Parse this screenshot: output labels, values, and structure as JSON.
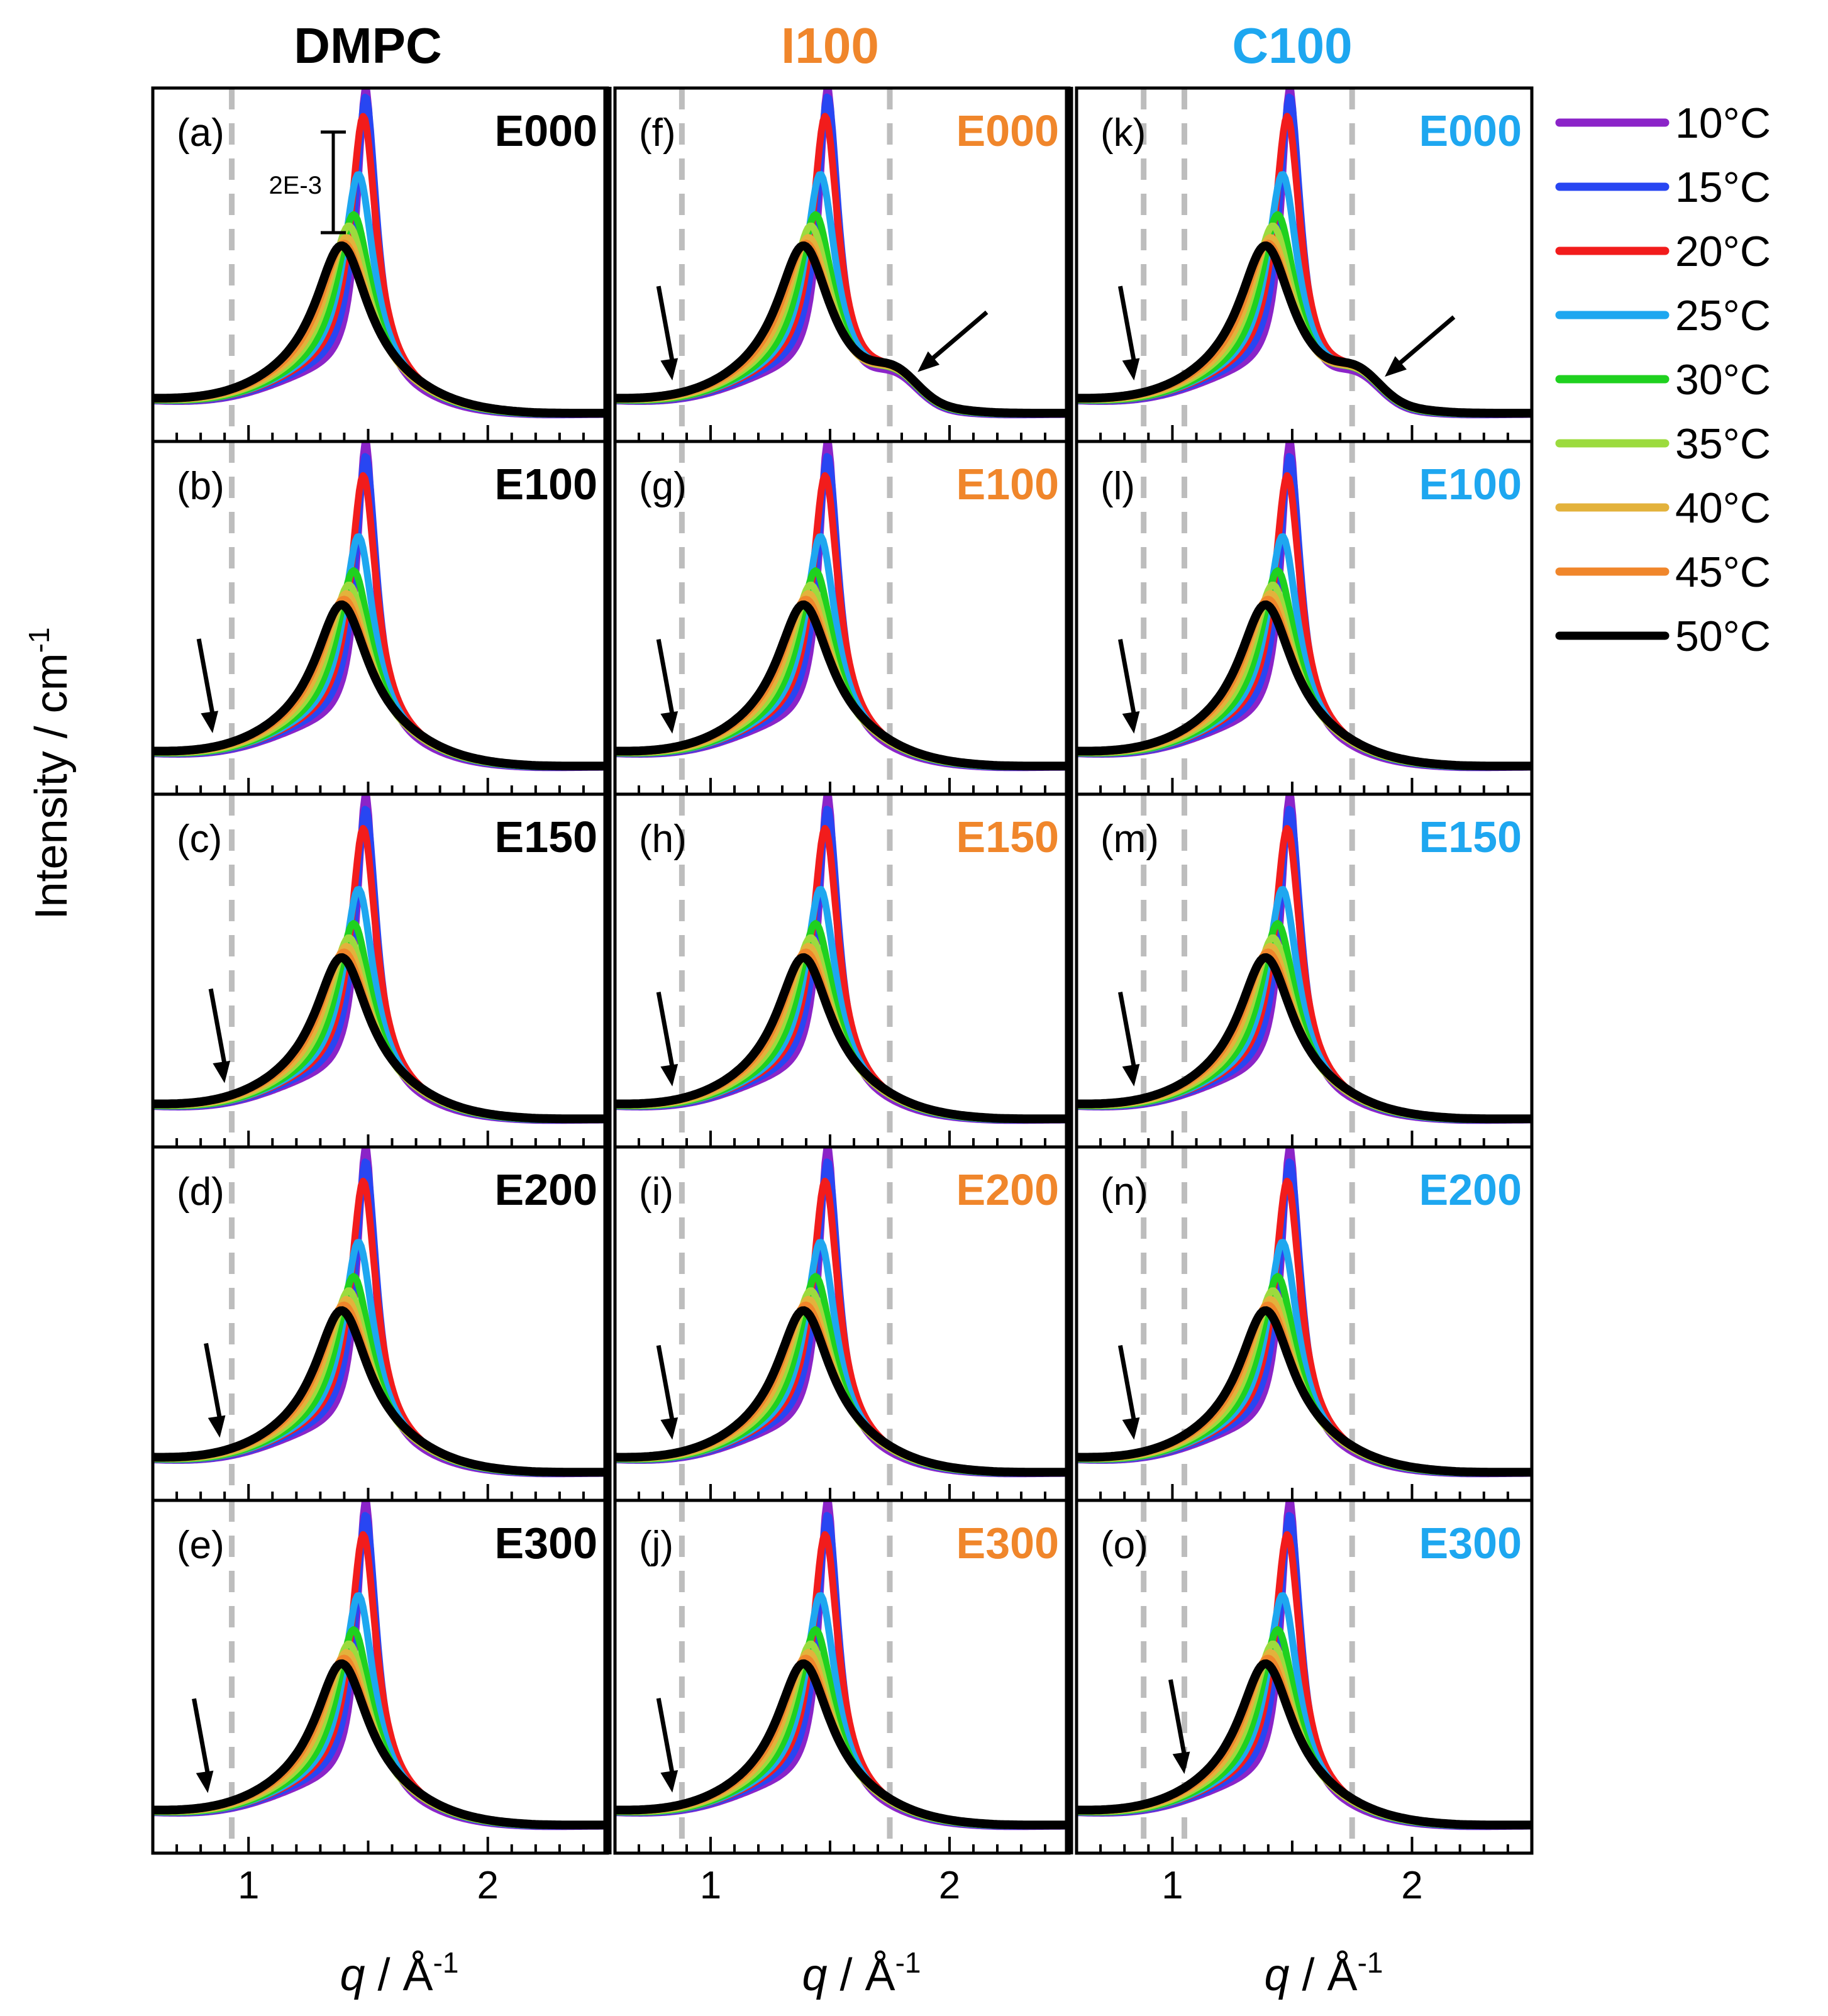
{
  "y_axis_label": {
    "main": "Intensity / cm",
    "sup": "-1"
  },
  "x_axis_label": {
    "symbol": "q",
    "unit": " / Å",
    "sup": "-1"
  },
  "scale_bar_label": "2E-3",
  "columns": [
    {
      "title": "DMPC",
      "color": "#000000",
      "label_color": "#000000"
    },
    {
      "title": "I100",
      "color": "#F0862B",
      "label_color": "#F0862B"
    },
    {
      "title": "C100",
      "color": "#1EA7F0",
      "label_color": "#1EA7F0"
    }
  ],
  "rows": [
    "E000",
    "E100",
    "E150",
    "E200",
    "E300"
  ],
  "panel_letters": [
    [
      "(a)",
      "(b)",
      "(c)",
      "(d)",
      "(e)"
    ],
    [
      "(f)",
      "(g)",
      "(h)",
      "(i)",
      "(j)"
    ],
    [
      "(k)",
      "(l)",
      "(m)",
      "(n)",
      "(o)"
    ]
  ],
  "legend": [
    {
      "label": "10°C",
      "color": "#8B24C8"
    },
    {
      "label": "15°C",
      "color": "#2846F2"
    },
    {
      "label": "20°C",
      "color": "#F21C1C"
    },
    {
      "label": "25°C",
      "color": "#1EA7F0"
    },
    {
      "label": "30°C",
      "color": "#1FD11F"
    },
    {
      "label": "35°C",
      "color": "#9CDB3E"
    },
    {
      "label": "40°C",
      "color": "#E3B23C"
    },
    {
      "label": "45°C",
      "color": "#F0862B"
    },
    {
      "label": "50°C",
      "color": "#000000"
    }
  ],
  "chart_data": {
    "type": "line",
    "x_range": [
      0.6,
      2.5
    ],
    "x_ticks": [
      1,
      2
    ],
    "x_tick_labels": [
      "1",
      "2"
    ],
    "guide_lines_q": [
      [
        0.93
      ],
      [
        0.88,
        1.75
      ],
      [
        0.88,
        1.05,
        1.75
      ]
    ],
    "series_temperatures_C": [
      10,
      15,
      20,
      25,
      30,
      35,
      40,
      45,
      50
    ],
    "peak_q": [
      1.49,
      1.49,
      1.48,
      1.46,
      1.44,
      1.42,
      1.41,
      1.4,
      1.39
    ],
    "peak_height_E000": [
      1.0,
      0.97,
      0.9,
      0.7,
      0.56,
      0.52,
      0.48,
      0.46,
      0.45
    ],
    "peak_height_other": [
      1.0,
      0.95,
      0.88,
      0.67,
      0.55,
      0.5,
      0.47,
      0.45,
      0.43
    ],
    "arrows": {
      "0": [
        null,
        [
          0.85,
          0.0
        ],
        [
          0.9,
          0.0
        ],
        [
          0.88,
          0.0
        ],
        [
          0.83,
          0.0
        ]
      ],
      "1": [
        [
          0.84,
          0.0
        ],
        [
          0.84,
          0.0
        ],
        [
          0.84,
          0.0
        ],
        [
          0.84,
          0.0
        ],
        [
          0.84,
          0.0
        ]
      ],
      "2": [
        [
          0.84,
          0.0
        ],
        [
          0.84,
          0.0
        ],
        [
          0.84,
          0.0
        ],
        [
          0.84,
          0.0
        ],
        [
          1.05,
          0.0
        ]
      ]
    },
    "arrows_right": {
      "1": [
        1.84,
        0.0
      ],
      "2": [
        1.86,
        0.0
      ]
    }
  }
}
